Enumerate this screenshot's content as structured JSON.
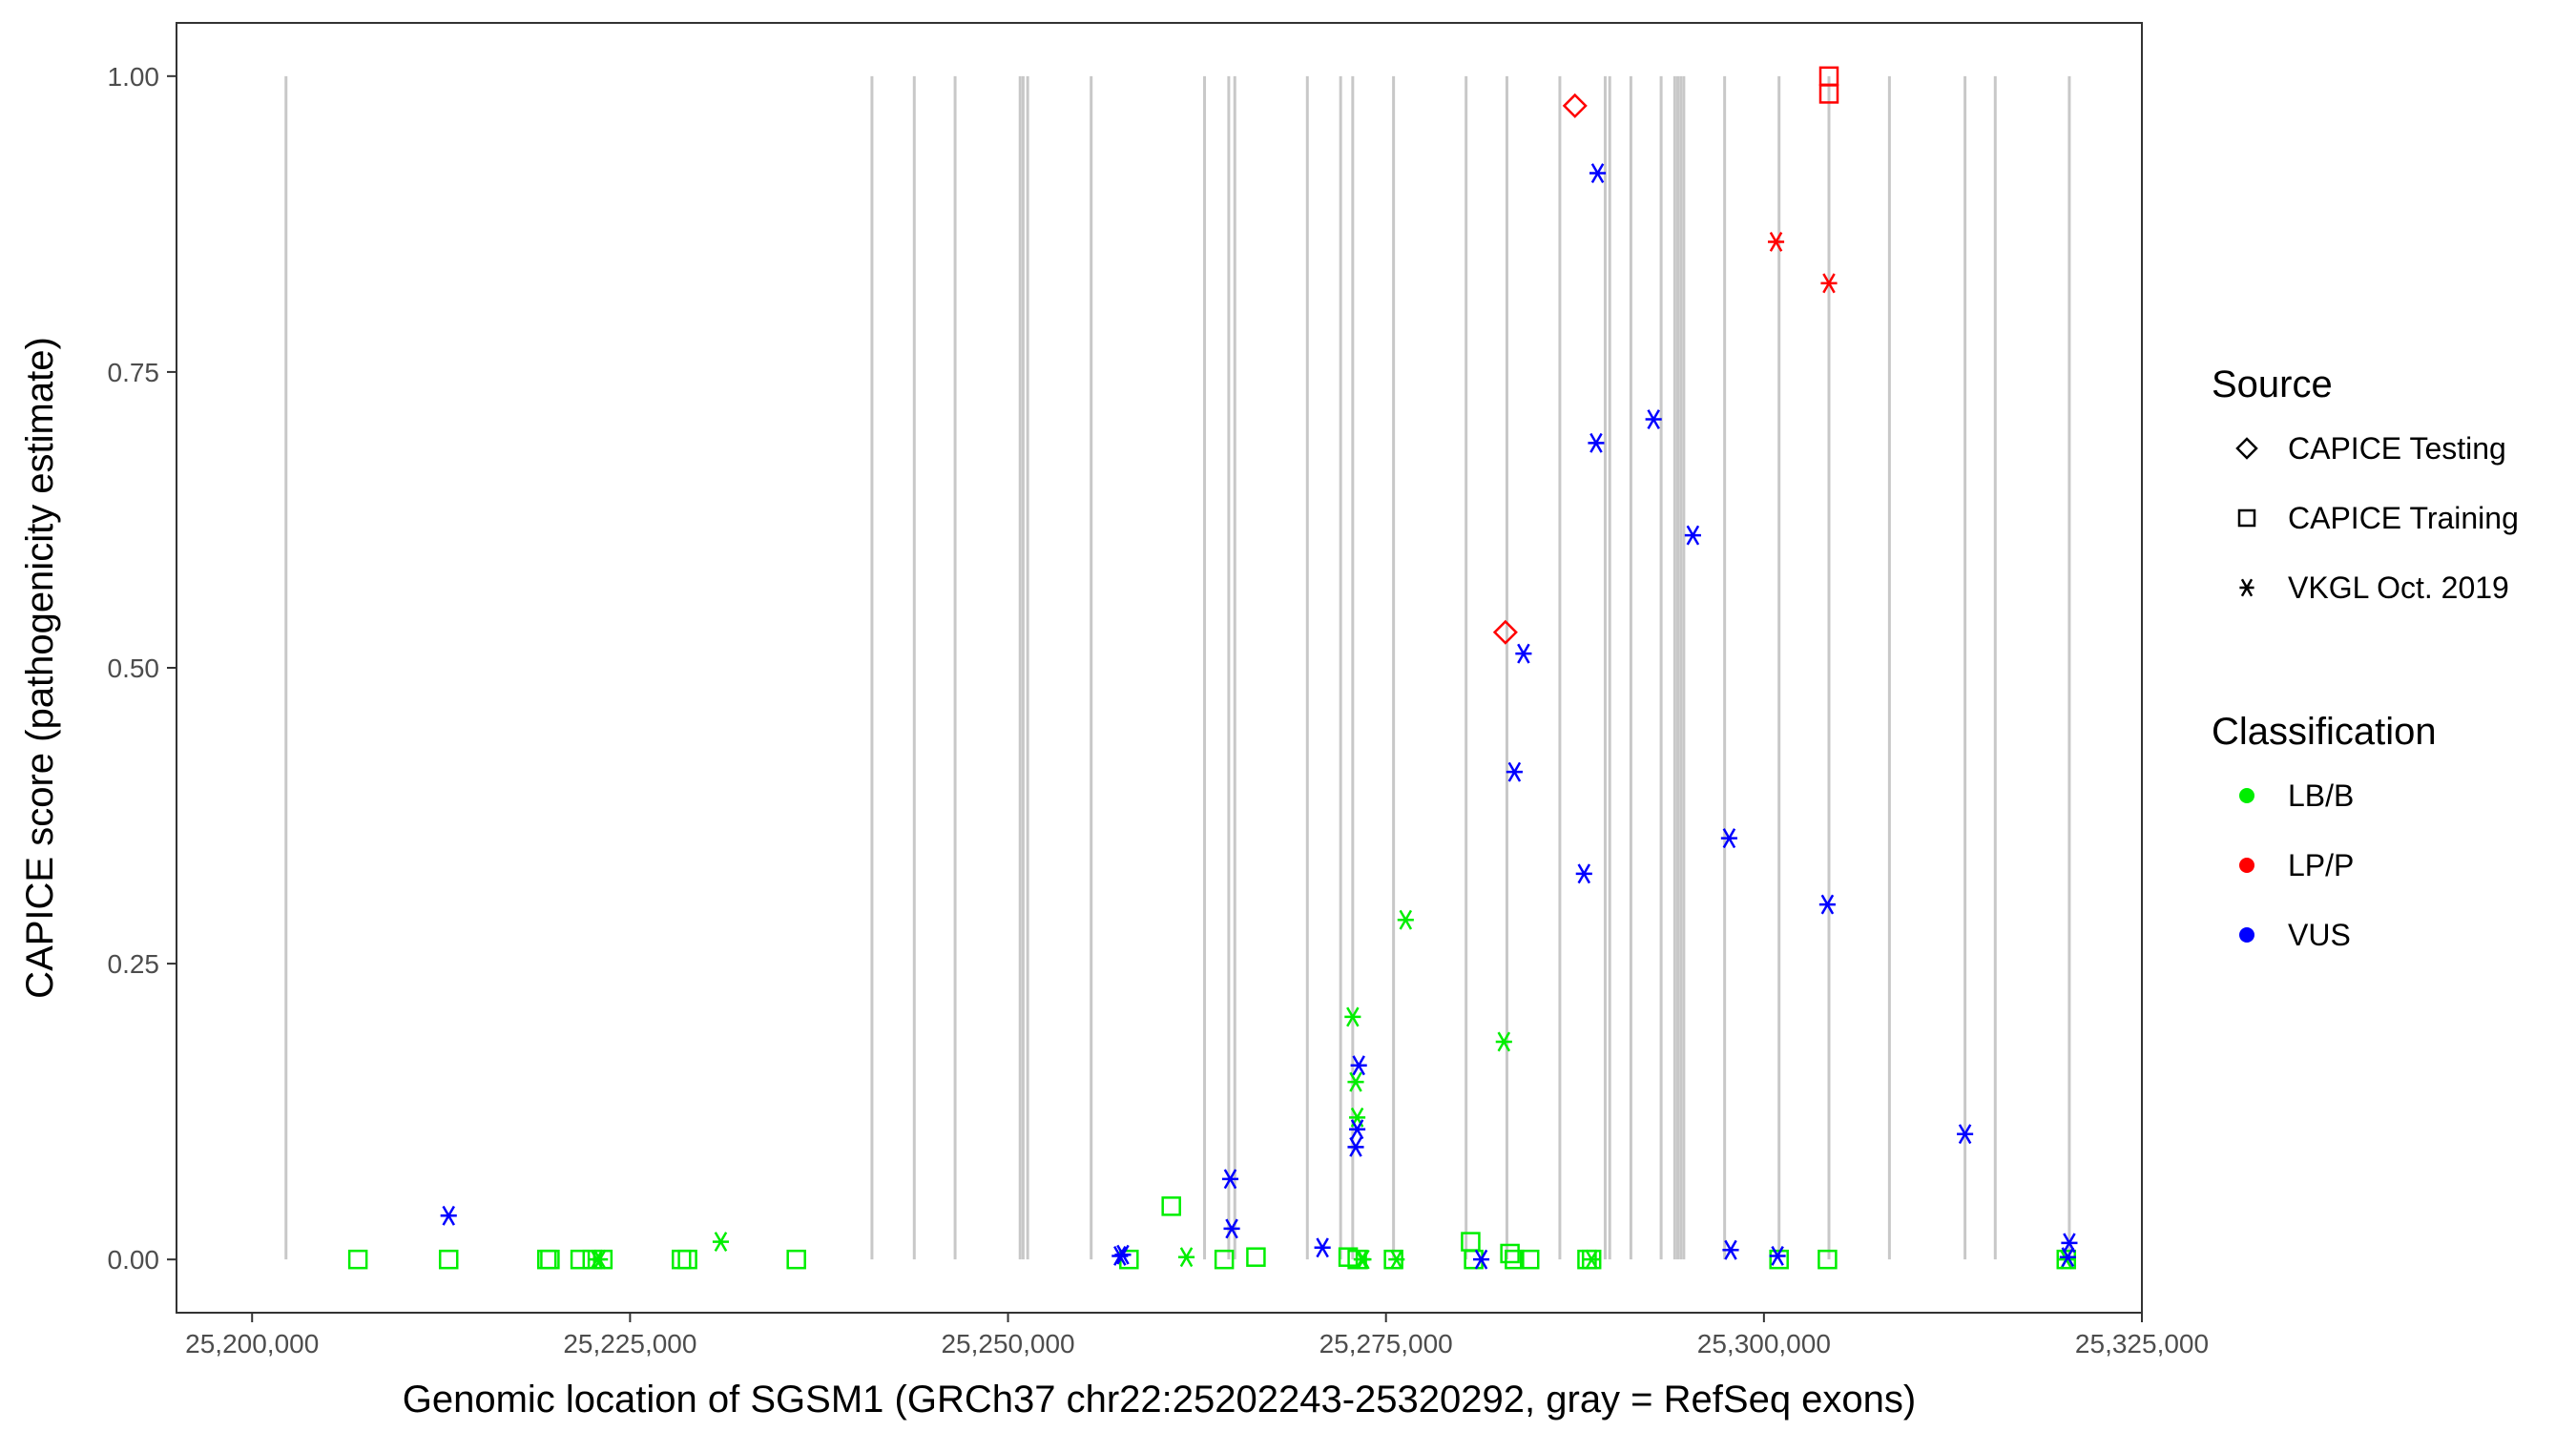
{
  "chart_data": {
    "type": "scatter",
    "title": "",
    "xlabel": "Genomic location of SGSM1 (GRCh37 chr22:25202243-25320292, gray = RefSeq exons)",
    "ylabel": "CAPICE score (pathogenicity estimate)",
    "xlim": [
      25195000,
      25325000
    ],
    "ylim": [
      -0.045,
      1.045
    ],
    "x_ticks": [
      25200000,
      25225000,
      25250000,
      25275000,
      25300000,
      25325000
    ],
    "x_tick_labels": [
      "25,200,000",
      "25,225,000",
      "25,250,000",
      "25,275,000",
      "25,300,000",
      "25,325,000"
    ],
    "y_ticks": [
      0,
      0.25,
      0.5,
      0.75,
      1.0
    ],
    "y_tick_labels": [
      "0.00",
      "0.25",
      "0.50",
      "0.75",
      "1.00"
    ],
    "grid": false,
    "exons": [
      25202243,
      25241000,
      25243800,
      25246500,
      25250800,
      25251000,
      25251300,
      25255500,
      25263000,
      25264600,
      25265000,
      25269800,
      25272000,
      25272800,
      25275500,
      25280300,
      25283000,
      25286500,
      25289500,
      25289800,
      25291200,
      25293200,
      25294100,
      25294300,
      25294500,
      25294700,
      25297400,
      25301000,
      25304300,
      25308300,
      25313300,
      25315300,
      25320200
    ],
    "legend": {
      "placement": "right",
      "source_title": "Source",
      "sources": [
        {
          "key": "testing",
          "label": "CAPICE Testing"
        },
        {
          "key": "training",
          "label": "CAPICE Training"
        },
        {
          "key": "vkgl",
          "label": "VKGL Oct. 2019"
        }
      ],
      "class_title": "Classification",
      "classes": [
        {
          "key": "LB/B",
          "label": "LB/B",
          "color": "#00ee00"
        },
        {
          "key": "LP/P",
          "label": "LP/P",
          "color": "#ff0000"
        },
        {
          "key": "VUS",
          "label": "VUS",
          "color": "#0000ff"
        }
      ]
    },
    "series": [
      {
        "source": "training",
        "class": "LB/B",
        "x": [
          25207000,
          25213000,
          25219500,
          25219700,
          25221700,
          25222500,
          25223200,
          25228400,
          25228800,
          25236000,
          25258000,
          25260800,
          25264300,
          25266400,
          25272500,
          25273100,
          25275500,
          25280600,
          25280800,
          25283200,
          25283500,
          25284500,
          25288300,
          25288600,
          25301000,
          25304200,
          25320000
        ],
        "y": [
          0.0,
          0.0,
          0.0,
          0.0,
          0.0,
          0.0,
          0.0,
          0.0,
          0.0,
          0.0,
          0.0,
          0.045,
          0.0,
          0.002,
          0.002,
          0.0,
          0.0,
          0.015,
          0.0,
          0.005,
          0.0,
          0.0,
          0.0,
          0.0,
          0.0,
          0.0,
          0.0
        ]
      },
      {
        "source": "vkgl",
        "class": "LB/B",
        "x": [
          25222800,
          25223000,
          25231000,
          25261800,
          25272800,
          25273000,
          25273100,
          25273400,
          25273500,
          25275700,
          25276300,
          25282800,
          25288600,
          25320000
        ],
        "y": [
          0.0,
          0.0,
          0.015,
          0.002,
          0.205,
          0.15,
          0.12,
          0.0,
          0.0,
          0.0,
          0.287,
          0.184,
          0.0,
          0.0
        ]
      },
      {
        "source": "training",
        "class": "LP/P",
        "x": [
          25304300,
          25304300
        ],
        "y": [
          1.0,
          0.985
        ]
      },
      {
        "source": "testing",
        "class": "LP/P",
        "x": [
          25282900,
          25287500
        ],
        "y": [
          0.53,
          0.975
        ]
      },
      {
        "source": "vkgl",
        "class": "LP/P",
        "x": [
          25300800,
          25304300
        ],
        "y": [
          0.86,
          0.825
        ]
      },
      {
        "source": "vkgl",
        "class": "VUS",
        "x": [
          25213000,
          25257400,
          25257600,
          25264700,
          25264800,
          25270800,
          25273000,
          25273100,
          25273200,
          25281300,
          25283500,
          25284100,
          25288100,
          25288900,
          25289000,
          25292700,
          25295300,
          25297700,
          25297800,
          25300900,
          25304200,
          25313300,
          25320100,
          25320200
        ],
        "y": [
          0.037,
          0.003,
          0.004,
          0.068,
          0.026,
          0.01,
          0.095,
          0.11,
          0.164,
          0.0,
          0.412,
          0.512,
          0.326,
          0.69,
          0.918,
          0.71,
          0.612,
          0.356,
          0.008,
          0.003,
          0.3,
          0.106,
          0.002,
          0.014
        ]
      }
    ]
  }
}
